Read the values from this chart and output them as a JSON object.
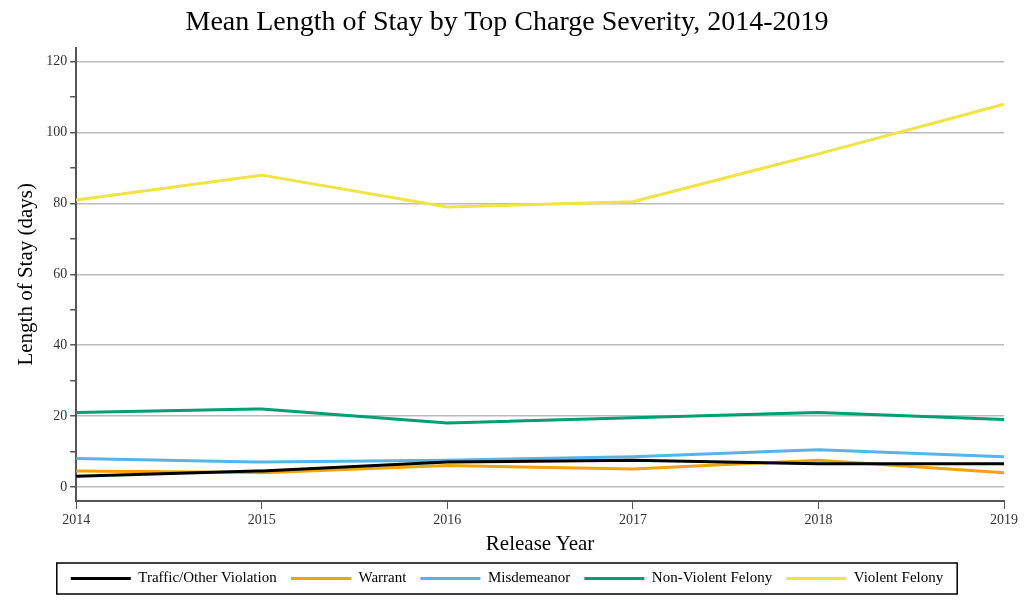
{
  "chart_data": {
    "type": "line",
    "title": "Mean Length of Stay by Top Charge Severity, 2014-2019",
    "xlabel": "Release Year",
    "ylabel": "Length of Stay (days)",
    "categories": [
      "2014",
      "2015",
      "2016",
      "2017",
      "2018",
      "2019"
    ],
    "series": [
      {
        "name": "Traffic/Other Violation",
        "color": "#000000",
        "values": [
          3,
          4.5,
          7,
          7.5,
          6.5,
          6.5
        ]
      },
      {
        "name": "Warrant",
        "color": "#f0a30a",
        "values": [
          4.5,
          4,
          6,
          5,
          7.5,
          4
        ]
      },
      {
        "name": "Misdemeanor",
        "color": "#56b4e9",
        "values": [
          8,
          7,
          7.5,
          8.5,
          10.5,
          8.5
        ]
      },
      {
        "name": "Non-Violent Felony",
        "color": "#009e73",
        "values": [
          21,
          22,
          18,
          19.5,
          21,
          19
        ]
      },
      {
        "name": "Violent Felony",
        "color": "#f0e442",
        "values": [
          81,
          88,
          79,
          80.5,
          94,
          108
        ]
      }
    ],
    "ylim": [
      -4,
      124
    ],
    "yticks": [
      0,
      {
        "value": 10,
        "label": null
      },
      20,
      {
        "value": 30,
        "label": null
      },
      40,
      {
        "value": 50,
        "label": null
      },
      60,
      {
        "value": 70,
        "label": null
      },
      80,
      {
        "value": 90,
        "label": null
      },
      100,
      {
        "value": 110,
        "label": null
      },
      120
    ],
    "grid": "y",
    "legend": "bottom",
    "marker": "none",
    "line_style": "solid"
  }
}
